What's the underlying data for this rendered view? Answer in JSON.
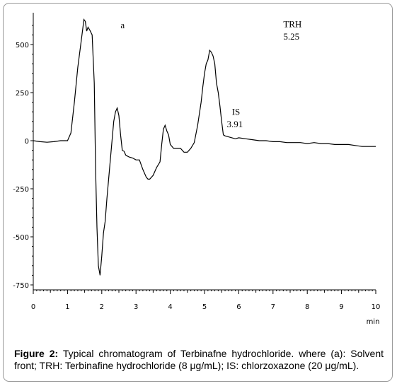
{
  "caption": {
    "label": "Figure 2:",
    "text": "Typical chromatogram of Terbinafne hydrochloride. where (a): Solvent front; TRH: Terbinafine hydrochloride (8 μg/mL); IS: chlorzoxazone (20 μg/mL)."
  },
  "chart_data": {
    "type": "line",
    "title": "",
    "xlabel": "min",
    "ylabel": "",
    "xlim": [
      0,
      10
    ],
    "ylim": [
      -780,
      650
    ],
    "x_ticks": [
      "0",
      "1",
      "2",
      "3",
      "4",
      "5",
      "6",
      "7",
      "8",
      "9",
      "10"
    ],
    "y_ticks": [
      "500",
      "250",
      "0",
      "-250",
      "-500",
      "-750"
    ],
    "y_tick_values": [
      500,
      250,
      0,
      -250,
      -500,
      -750
    ],
    "grid": false,
    "annotations": [
      {
        "text": "a",
        "x": 2.55,
        "y": 585
      },
      {
        "text": "TRH",
        "x": 7.3,
        "y": 590
      },
      {
        "text": "5.25",
        "x": 7.3,
        "y": 525
      },
      {
        "text": "IS",
        "x": 5.8,
        "y": 135
      },
      {
        "text": "3.91",
        "x": 5.65,
        "y": 70
      }
    ],
    "series": [
      {
        "x": [
          0.0,
          0.2,
          0.4,
          0.6,
          0.8,
          1.0,
          1.1,
          1.2,
          1.3,
          1.4,
          1.48,
          1.52,
          1.56,
          1.6,
          1.65,
          1.72,
          1.78,
          1.82,
          1.86,
          1.9,
          1.95,
          2.0,
          2.05,
          2.1,
          2.15,
          2.2,
          2.25,
          2.3,
          2.35,
          2.4,
          2.45,
          2.5,
          2.55,
          2.6,
          2.65,
          2.7,
          2.75,
          2.8,
          2.9,
          3.0,
          3.1,
          3.2,
          3.3,
          3.35,
          3.4,
          3.5,
          3.6,
          3.7,
          3.75,
          3.8,
          3.85,
          3.9,
          3.95,
          4.0,
          4.1,
          4.2,
          4.3,
          4.4,
          4.5,
          4.6,
          4.7,
          4.8,
          4.9,
          4.95,
          5.0,
          5.05,
          5.1,
          5.15,
          5.2,
          5.25,
          5.3,
          5.35,
          5.4,
          5.45,
          5.5,
          5.55,
          5.6,
          5.7,
          5.8,
          5.9,
          6.0,
          6.2,
          6.4,
          6.6,
          6.8,
          7.0,
          7.2,
          7.4,
          7.6,
          7.8,
          8.0,
          8.2,
          8.4,
          8.6,
          8.8,
          9.0,
          9.2,
          9.4,
          9.6,
          9.8,
          10.0
        ],
        "values": [
          0,
          -5,
          -8,
          -5,
          0,
          0,
          40,
          200,
          380,
          520,
          630,
          620,
          570,
          590,
          575,
          550,
          300,
          -150,
          -450,
          -650,
          -700,
          -600,
          -480,
          -420,
          -300,
          -200,
          -100,
          0,
          100,
          150,
          170,
          130,
          30,
          -50,
          -55,
          -75,
          -80,
          -85,
          -90,
          -100,
          -100,
          -150,
          -190,
          -200,
          -200,
          -180,
          -140,
          -110,
          -20,
          60,
          80,
          50,
          30,
          -20,
          -40,
          -40,
          -40,
          -60,
          -60,
          -40,
          -10,
          80,
          200,
          280,
          350,
          400,
          420,
          470,
          460,
          440,
          400,
          300,
          250,
          180,
          100,
          30,
          25,
          20,
          15,
          10,
          15,
          10,
          5,
          0,
          0,
          -5,
          -5,
          -10,
          -10,
          -10,
          -15,
          -10,
          -15,
          -15,
          -20,
          -20,
          -20,
          -25,
          -30,
          -30,
          -30
        ]
      }
    ]
  }
}
